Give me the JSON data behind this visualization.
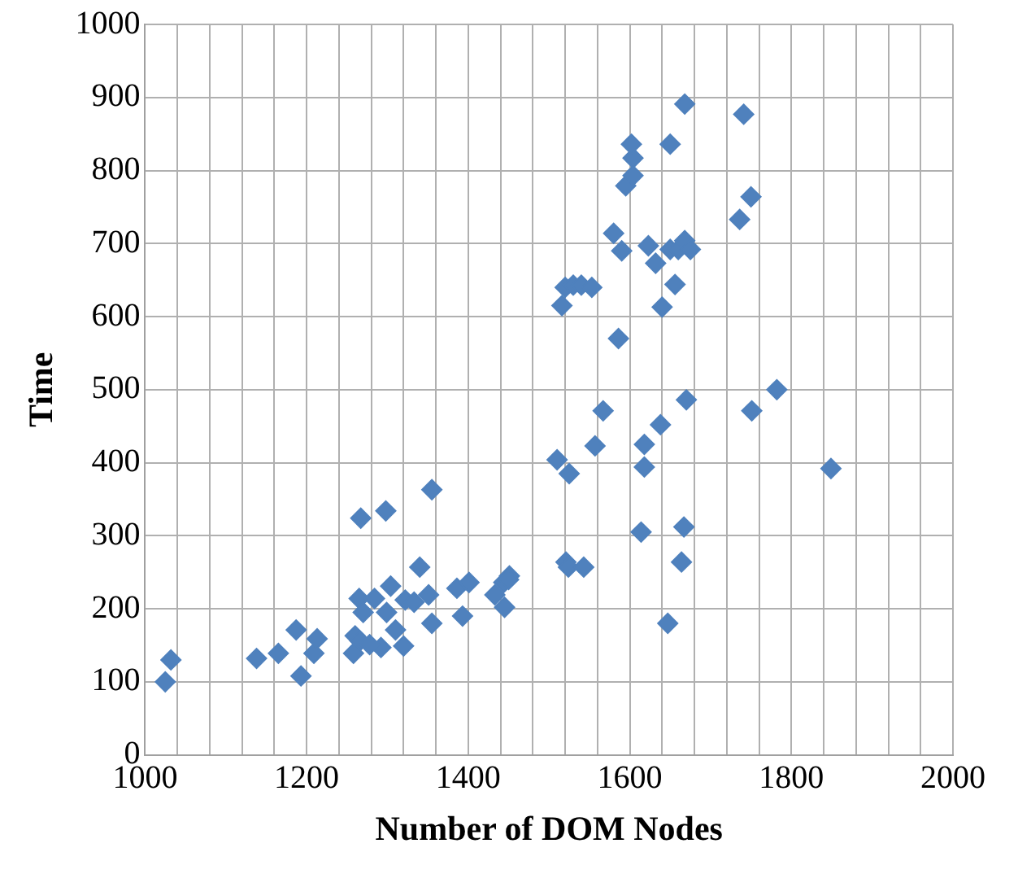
{
  "chart_data": {
    "type": "scatter",
    "xlabel": "Number of DOM Nodes",
    "ylabel": "Time",
    "xlim": [
      1000,
      2000
    ],
    "ylim": [
      0,
      1000
    ],
    "xticks": [
      1000,
      {
        "value": 1040,
        "label": null
      },
      {
        "value": 1080,
        "label": null
      },
      {
        "value": 1120,
        "label": null
      },
      {
        "value": 1160,
        "label": null
      },
      1200,
      {
        "value": 1240,
        "label": null
      },
      {
        "value": 1280,
        "label": null
      },
      {
        "value": 1320,
        "label": null
      },
      {
        "value": 1360,
        "label": null
      },
      1400,
      {
        "value": 1440,
        "label": null
      },
      {
        "value": 1480,
        "label": null
      },
      {
        "value": 1520,
        "label": null
      },
      {
        "value": 1560,
        "label": null
      },
      1600,
      {
        "value": 1640,
        "label": null
      },
      {
        "value": 1680,
        "label": null
      },
      {
        "value": 1720,
        "label": null
      },
      {
        "value": 1760,
        "label": null
      },
      1800,
      {
        "value": 1840,
        "label": null
      },
      {
        "value": 1880,
        "label": null
      },
      {
        "value": 1920,
        "label": null
      },
      {
        "value": 1960,
        "label": null
      },
      2000
    ],
    "yticks": [
      0,
      100,
      200,
      300,
      400,
      500,
      600,
      700,
      800,
      900,
      1000
    ],
    "grid": true,
    "legend": false,
    "marker": "diamond",
    "series": [
      {
        "color": "#4f81bd",
        "x": [
          1025,
          1032,
          1138,
          1165,
          1187,
          1193,
          1209,
          1213,
          1267,
          1298,
          1355,
          1340,
          1265,
          1284,
          1304,
          1322,
          1351,
          1333,
          1270,
          1299,
          1355,
          1260,
          1266,
          1258,
          1292,
          1310,
          1320,
          1278,
          1386,
          1401,
          1393,
          1433,
          1451,
          1444,
          1445,
          1521,
          1567,
          1510,
          1525,
          1557,
          1618,
          1638,
          1670,
          1751,
          1782,
          1618,
          1849,
          1614,
          1667,
          1664,
          1524,
          1543,
          1450,
          1647,
          1516,
          1520,
          1530,
          1540,
          1553,
          1586,
          1580,
          1590,
          1595,
          1604,
          1604,
          1602,
          1650,
          1668,
          1741,
          1750,
          1736,
          1623,
          1632,
          1650,
          1640,
          1656,
          1660,
          1668,
          1675
        ],
        "values": [
          100,
          130,
          132,
          139,
          171,
          108,
          139,
          159,
          324,
          334,
          363,
          257,
          214,
          214,
          231,
          212,
          219,
          209,
          195,
          195,
          180,
          163,
          156,
          139,
          147,
          171,
          149,
          151,
          228,
          236,
          190,
          219,
          245,
          236,
          202,
          264,
          471,
          404,
          385,
          423,
          425,
          452,
          486,
          471,
          500,
          394,
          392,
          305,
          312,
          264,
          257,
          257,
          240,
          180,
          615,
          640,
          643,
          643,
          640,
          570,
          714,
          690,
          779,
          793,
          817,
          836,
          836,
          891,
          877,
          764,
          733,
          697,
          673,
          692,
          613,
          644,
          692,
          704,
          692
        ]
      }
    ]
  }
}
